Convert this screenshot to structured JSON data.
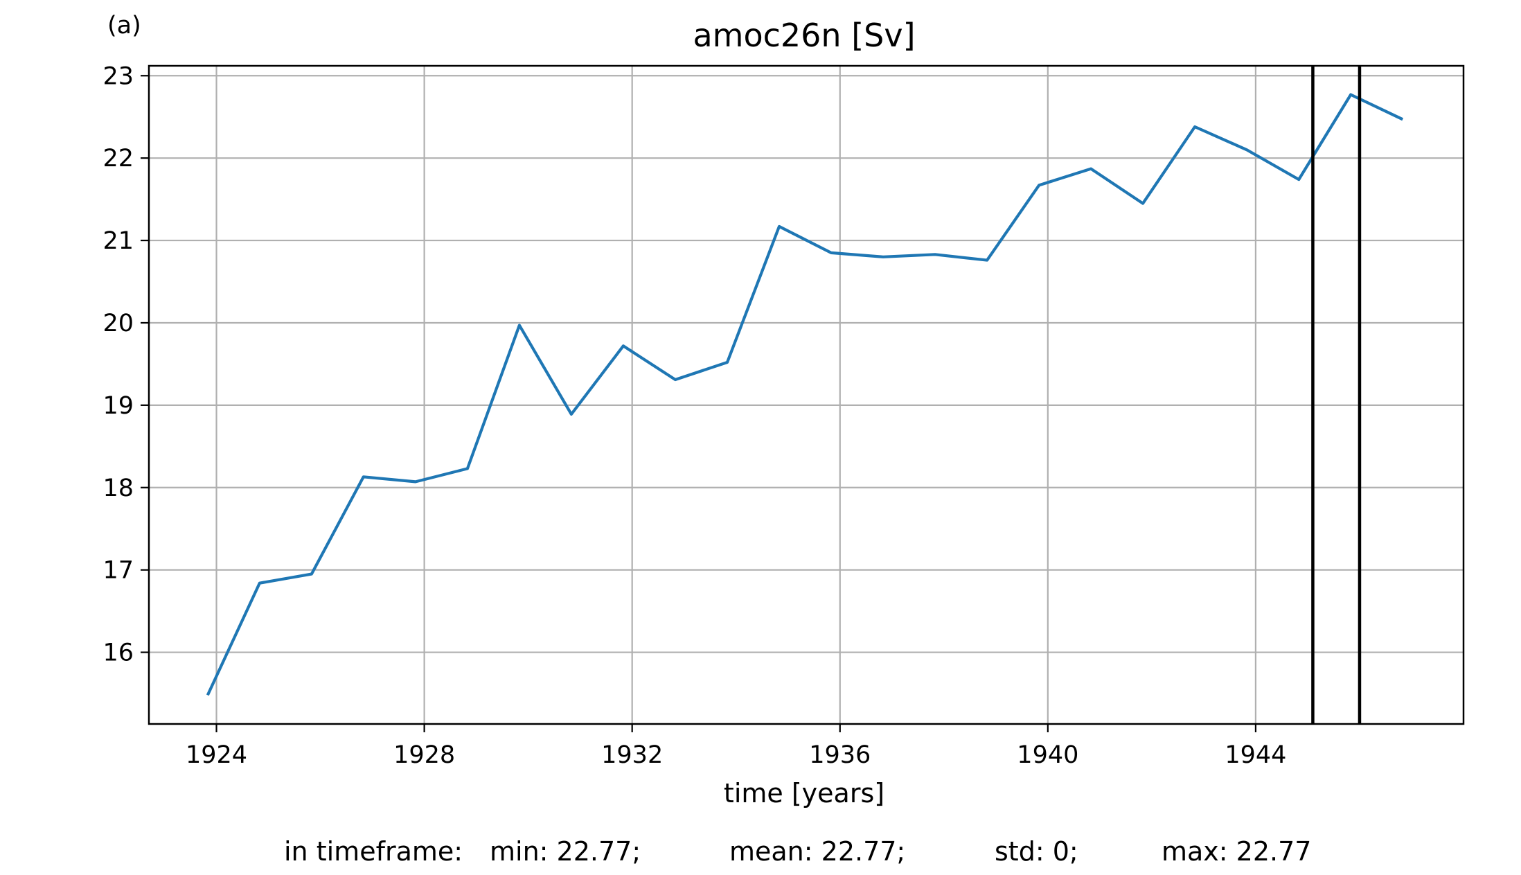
{
  "panel_label": "(a)",
  "stats": {
    "prefix": "in timeframe:",
    "min": "min: 22.77;",
    "mean": "mean: 22.77;",
    "std": "std: 0;",
    "max": "max: 22.77"
  },
  "chart_data": {
    "type": "line",
    "title": "amoc26n [Sv]",
    "xlabel": "time [years]",
    "ylabel": "",
    "xlim": [
      1922.7,
      1948.0
    ],
    "ylim": [
      15.13,
      23.12
    ],
    "xticks": [
      1924,
      1928,
      1932,
      1936,
      1940,
      1944
    ],
    "yticks": [
      16,
      17,
      18,
      19,
      20,
      21,
      22,
      23
    ],
    "grid": true,
    "series": [
      {
        "color": "#1f77b4",
        "x": [
          1923.83,
          1924.83,
          1925.83,
          1926.83,
          1927.83,
          1928.83,
          1929.83,
          1930.83,
          1931.83,
          1932.83,
          1933.83,
          1934.83,
          1935.83,
          1936.83,
          1937.83,
          1938.83,
          1939.83,
          1940.83,
          1941.83,
          1942.83,
          1943.83,
          1944.83,
          1945.83,
          1946.83
        ],
        "y": [
          15.48,
          16.84,
          16.95,
          18.13,
          18.07,
          18.23,
          19.97,
          18.89,
          19.72,
          19.31,
          19.52,
          21.17,
          20.85,
          20.8,
          20.83,
          20.76,
          21.67,
          21.87,
          21.45,
          22.38,
          22.1,
          21.74,
          22.77,
          22.47
        ]
      }
    ],
    "vlines": {
      "color": "#000000",
      "x": [
        1945.1,
        1946.0
      ]
    }
  }
}
